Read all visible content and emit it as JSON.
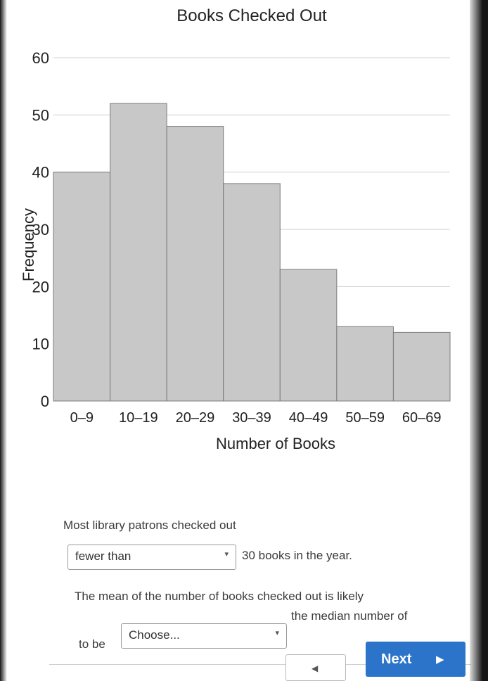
{
  "chart_data": {
    "type": "bar",
    "title": "Books Checked Out",
    "xlabel": "Number of Books",
    "ylabel": "Frequency",
    "categories": [
      "0–9",
      "10–19",
      "20–29",
      "30–39",
      "40–49",
      "50–59",
      "60–69"
    ],
    "values": [
      40,
      52,
      48,
      38,
      23,
      13,
      12
    ],
    "ylim": [
      0,
      60
    ],
    "yticks": [
      "0",
      "10",
      "20",
      "30",
      "40",
      "50",
      "60"
    ],
    "grid": true,
    "bar_color": "#c8c8c8"
  },
  "question": {
    "line1": "Most library patrons checked out",
    "select1_value": "fewer than",
    "after_select1": "30 books in the year.",
    "line2": "The mean of the number of books checked out is likely",
    "select2_prefix": "to be",
    "select2_value": "Choose...",
    "after_select2": "the median number of"
  },
  "nav": {
    "prev_icon": "left-triangle-icon",
    "next_label": "Next",
    "next_icon": "right-triangle-icon",
    "next_color": "#2b74c9"
  }
}
